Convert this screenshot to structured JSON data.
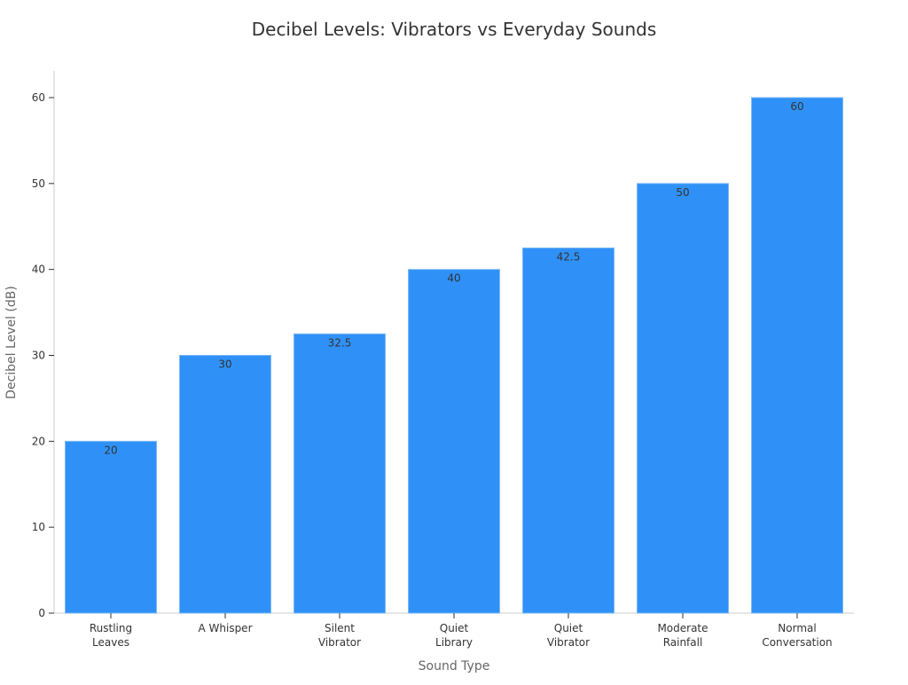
{
  "chart_data": {
    "type": "bar",
    "title": "Decibel Levels: Vibrators vs Everyday Sounds",
    "xlabel": "Sound Type",
    "ylabel": "Decibel Level (dB)",
    "categories": [
      [
        "Rustling",
        "Leaves"
      ],
      [
        "A Whisper"
      ],
      [
        "Silent",
        "Vibrator"
      ],
      [
        "Quiet",
        "Library"
      ],
      [
        "Quiet",
        "Vibrator"
      ],
      [
        "Moderate",
        "Rainfall"
      ],
      [
        "Normal",
        "Conversation"
      ]
    ],
    "values": [
      20,
      30,
      32.5,
      40,
      42.5,
      50,
      60
    ],
    "data_labels": [
      "20",
      "30",
      "32.5",
      "40",
      "42.5",
      "50",
      "60"
    ],
    "yticks": [
      0,
      10,
      20,
      30,
      40,
      50,
      60
    ],
    "ylim": [
      0,
      63
    ],
    "grid": false,
    "colors": {
      "bar": "#2F91F7",
      "bar_edge": "#7DB8F5",
      "axis": "#cccccc",
      "text": "#333333"
    }
  }
}
